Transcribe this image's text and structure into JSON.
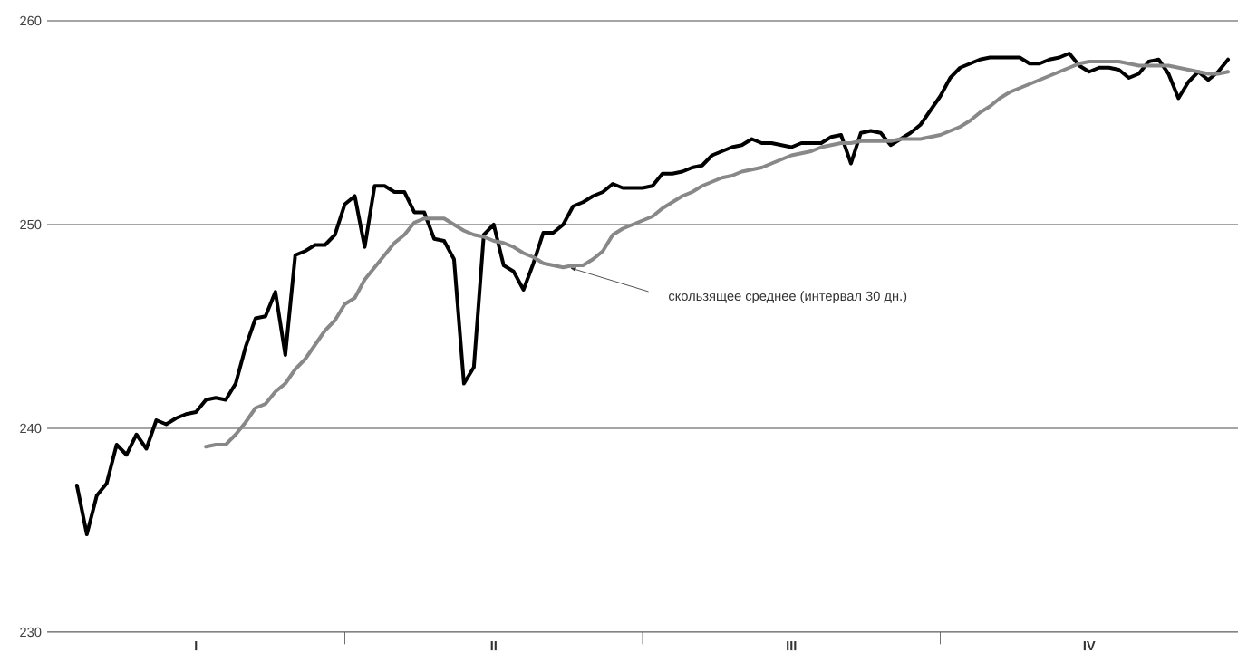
{
  "chart_data": {
    "type": "line",
    "line_style": "solid",
    "grid": "y",
    "ylim": [
      230,
      260
    ],
    "categories": [
      null,
      null,
      null,
      null,
      null,
      null,
      null,
      null,
      null,
      null,
      null,
      null,
      null,
      null,
      null,
      "I",
      null,
      null,
      null,
      null,
      null,
      null,
      null,
      null,
      null,
      null,
      null,
      null,
      null,
      null,
      null,
      null,
      null,
      null,
      null,
      null,
      null,
      null,
      null,
      null,
      null,
      null,
      null,
      null,
      null,
      "II",
      null,
      null,
      null,
      null,
      null,
      null,
      null,
      null,
      null,
      null,
      null,
      null,
      null,
      null,
      null,
      null,
      null,
      null,
      null,
      null,
      null,
      null,
      null,
      null,
      null,
      null,
      null,
      null,
      null,
      "III",
      null,
      null,
      null,
      null,
      null,
      null,
      null,
      null,
      null,
      null,
      null,
      null,
      null,
      null,
      null,
      null,
      null,
      null,
      null,
      null,
      null,
      null,
      null,
      null,
      null,
      null,
      null,
      null,
      null,
      "IV",
      null,
      null,
      null,
      null,
      null,
      null,
      null,
      null,
      null,
      null,
      null,
      null,
      null,
      null
    ],
    "yticks": [
      230,
      240,
      250,
      260
    ],
    "series": [
      {
        "color": "#000000",
        "values": [
          null,
          null,
          null,
          237.2,
          234.8,
          236.7,
          237.3,
          239.2,
          238.7,
          239.7,
          239.0,
          240.4,
          240.2,
          240.5,
          240.7,
          240.8,
          241.4,
          241.5,
          241.4,
          242.2,
          244.0,
          245.4,
          245.5,
          246.7,
          243.6,
          248.5,
          248.7,
          249.0,
          249.0,
          249.5,
          251.0,
          251.4,
          248.9,
          251.9,
          251.9,
          251.6,
          251.6,
          250.6,
          250.6,
          249.3,
          249.2,
          248.3,
          242.2,
          243.0,
          249.5,
          250.0,
          248.0,
          247.7,
          246.8,
          248.1,
          249.6,
          249.6,
          250.0,
          250.9,
          251.1,
          251.4,
          251.6,
          252.0,
          251.8,
          251.8,
          251.8,
          251.9,
          252.5,
          252.5,
          252.6,
          252.8,
          252.9,
          253.4,
          253.6,
          253.8,
          253.9,
          254.2,
          254.0,
          254.0,
          253.9,
          253.8,
          254.0,
          254.0,
          254.0,
          254.3,
          254.4,
          253.0,
          254.5,
          254.6,
          254.5,
          253.9,
          254.2,
          254.5,
          254.9,
          255.6,
          256.3,
          257.2,
          257.7,
          257.9,
          258.1,
          258.2,
          258.2,
          258.2,
          258.2,
          257.9,
          257.9,
          258.1,
          258.2,
          258.4,
          257.8,
          257.5,
          257.7,
          257.7,
          257.6,
          257.2,
          257.4,
          258.0,
          258.1,
          257.4,
          256.2,
          257.0,
          257.5,
          257.1,
          257.5,
          258.1
        ]
      },
      {
        "color": "#888888",
        "values": [
          null,
          null,
          null,
          null,
          null,
          null,
          null,
          null,
          null,
          null,
          null,
          null,
          null,
          null,
          null,
          null,
          239.1,
          239.2,
          239.2,
          239.7,
          240.3,
          241.0,
          241.2,
          241.8,
          242.2,
          242.9,
          243.4,
          244.1,
          244.8,
          245.3,
          246.1,
          246.4,
          247.3,
          247.9,
          248.5,
          249.1,
          249.5,
          250.1,
          250.3,
          250.3,
          250.3,
          250.0,
          249.7,
          249.5,
          249.4,
          249.2,
          249.1,
          248.9,
          248.6,
          248.4,
          248.1,
          248.0,
          247.9,
          248.0,
          248.0,
          248.3,
          248.7,
          249.5,
          249.8,
          250.0,
          250.2,
          250.4,
          250.8,
          251.1,
          251.4,
          251.6,
          251.9,
          252.1,
          252.3,
          252.4,
          252.6,
          252.7,
          252.8,
          253.0,
          253.2,
          253.4,
          253.5,
          253.6,
          253.8,
          253.9,
          254.0,
          254.0,
          254.1,
          254.1,
          254.1,
          254.1,
          254.2,
          254.2,
          254.2,
          254.3,
          254.4,
          254.6,
          254.8,
          255.1,
          255.5,
          255.8,
          256.2,
          256.5,
          256.7,
          256.9,
          257.1,
          257.3,
          257.5,
          257.7,
          257.9,
          258.0,
          258.0,
          258.0,
          258.0,
          257.9,
          257.8,
          257.8,
          257.8,
          257.8,
          257.7,
          257.6,
          257.5,
          257.4,
          257.4,
          257.5
        ]
      }
    ],
    "annotations": [
      "скользящее среднее (интервал 30 дн.)"
    ]
  }
}
